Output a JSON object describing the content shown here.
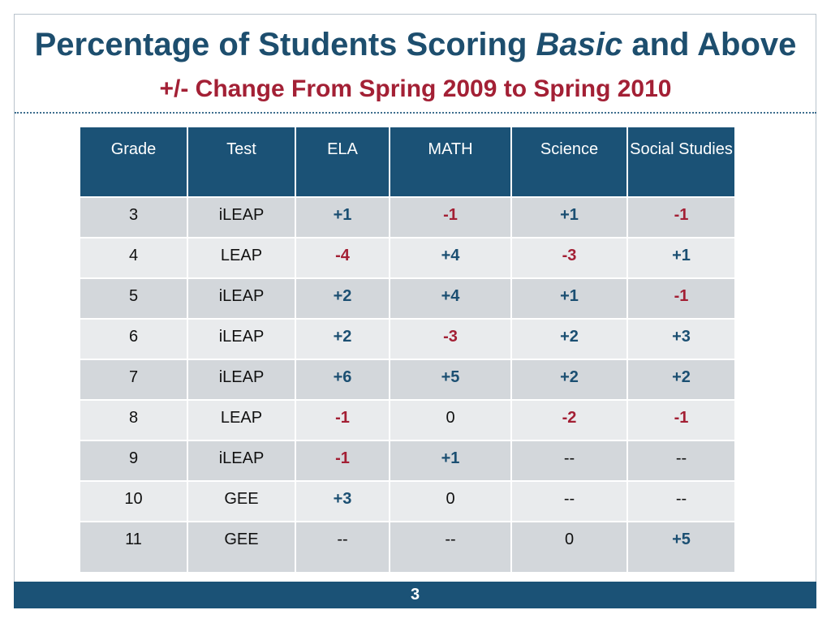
{
  "slide": {
    "title_prefix": "Percentage of Students Scoring ",
    "title_emphasis": "Basic",
    "title_suffix": " and Above",
    "subtitle": "+/- Change From Spring 2009 to Spring 2010",
    "page_number": "3"
  },
  "colors": {
    "title": "#1d4e6e",
    "subtitle": "#a32035",
    "header_bg": "#1b5276",
    "positive": "#1b4f72",
    "negative": "#a31f34"
  },
  "table": {
    "headers": [
      "Grade",
      "Test",
      "ELA",
      "MATH",
      "Science",
      "Social Studies"
    ],
    "rows": [
      [
        "3",
        "iLEAP",
        "+1",
        "-1",
        "+1",
        "-1"
      ],
      [
        "4",
        "LEAP",
        "-4",
        "+4",
        "-3",
        "+1"
      ],
      [
        "5",
        "iLEAP",
        "+2",
        "+4",
        "+1",
        "-1"
      ],
      [
        "6",
        "iLEAP",
        "+2",
        "-3",
        "+2",
        "+3"
      ],
      [
        "7",
        "iLEAP",
        "+6",
        "+5",
        "+2",
        "+2"
      ],
      [
        "8",
        "LEAP",
        "-1",
        "0",
        "-2",
        "-1"
      ],
      [
        "9",
        "iLEAP",
        "-1",
        "+1",
        "--",
        "--"
      ],
      [
        "10",
        "GEE",
        "+3",
        "0",
        "--",
        "--"
      ],
      [
        "11",
        "GEE",
        "--",
        "--",
        "0",
        "+5"
      ]
    ]
  }
}
